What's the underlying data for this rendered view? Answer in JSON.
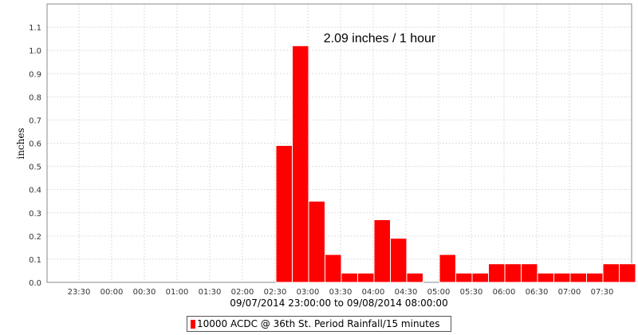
{
  "chart_data": {
    "type": "bar",
    "title": "",
    "annotation": "2.09 inches / 1 hour",
    "ylabel": "inches",
    "xlabel": "09/07/2014 23:00:00 to 09/08/2014 08:00:00",
    "ylim": [
      0,
      1.2
    ],
    "yticks": [
      "0.0",
      "0.1",
      "0.2",
      "0.3",
      "0.4",
      "0.5",
      "0.6",
      "0.7",
      "0.8",
      "0.9",
      "1.0",
      "1.1"
    ],
    "xtick_labels": [
      "23:30",
      "00:00",
      "00:30",
      "01:00",
      "01:30",
      "02:00",
      "02:30",
      "03:00",
      "03:30",
      "04:00",
      "04:30",
      "05:00",
      "05:30",
      "06:00",
      "06:30",
      "07:00",
      "07:30"
    ],
    "grid": true,
    "legend_position": "bottom",
    "bar_color": "#ff0000",
    "series": [
      {
        "name": "10000 ACDC @ 36th St. Period Rainfall/15 minutes",
        "x": [
          "02:30",
          "02:45",
          "03:00",
          "03:15",
          "03:30",
          "03:45",
          "04:00",
          "04:15",
          "04:30",
          "04:45",
          "05:00",
          "05:15",
          "05:30",
          "05:45",
          "06:00",
          "06:15",
          "06:30",
          "06:45",
          "07:00",
          "07:15",
          "07:30",
          "07:45"
        ],
        "values": [
          0.59,
          1.02,
          0.35,
          0.12,
          0.04,
          0.04,
          0.27,
          0.19,
          0.04,
          0.0,
          0.12,
          0.04,
          0.04,
          0.08,
          0.08,
          0.08,
          0.04,
          0.04,
          0.04,
          0.04,
          0.08,
          0.08
        ]
      }
    ]
  }
}
